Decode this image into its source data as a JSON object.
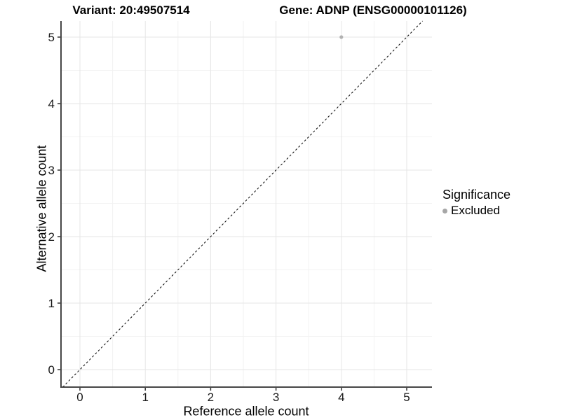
{
  "chart_data": {
    "type": "scatter",
    "titles": {
      "variant": "Variant: 20:49507514",
      "gene": "Gene: ADNP (ENSG00000101126)"
    },
    "xlabel": "Reference allele count",
    "ylabel": "Alternative allele count",
    "x_ticks": [
      0,
      1,
      2,
      3,
      4,
      5
    ],
    "y_ticks": [
      0,
      1,
      2,
      3,
      4,
      5
    ],
    "xlim": [
      -0.29,
      5.39
    ],
    "ylim": [
      -0.26,
      5.24
    ],
    "grid": {
      "major": true,
      "minor": true
    },
    "series": [
      {
        "name": "Excluded",
        "color": "#b2b2b2",
        "points": [
          [
            4,
            5
          ]
        ]
      }
    ],
    "reference_line": {
      "kind": "identity",
      "equation": "y = x",
      "style": "dashed",
      "color": "#000000"
    },
    "legend": {
      "position": "right",
      "title": "Significance",
      "entries": [
        {
          "label": "Excluded",
          "color": "#a6a6a6"
        }
      ]
    },
    "colors": {
      "background": "#ffffff",
      "grid_major": "#e6e6e6",
      "grid_minor": "#f2f2f2",
      "axis_line": "#474747",
      "tick": "#333333",
      "tick_label": "#1a1a1a"
    }
  }
}
